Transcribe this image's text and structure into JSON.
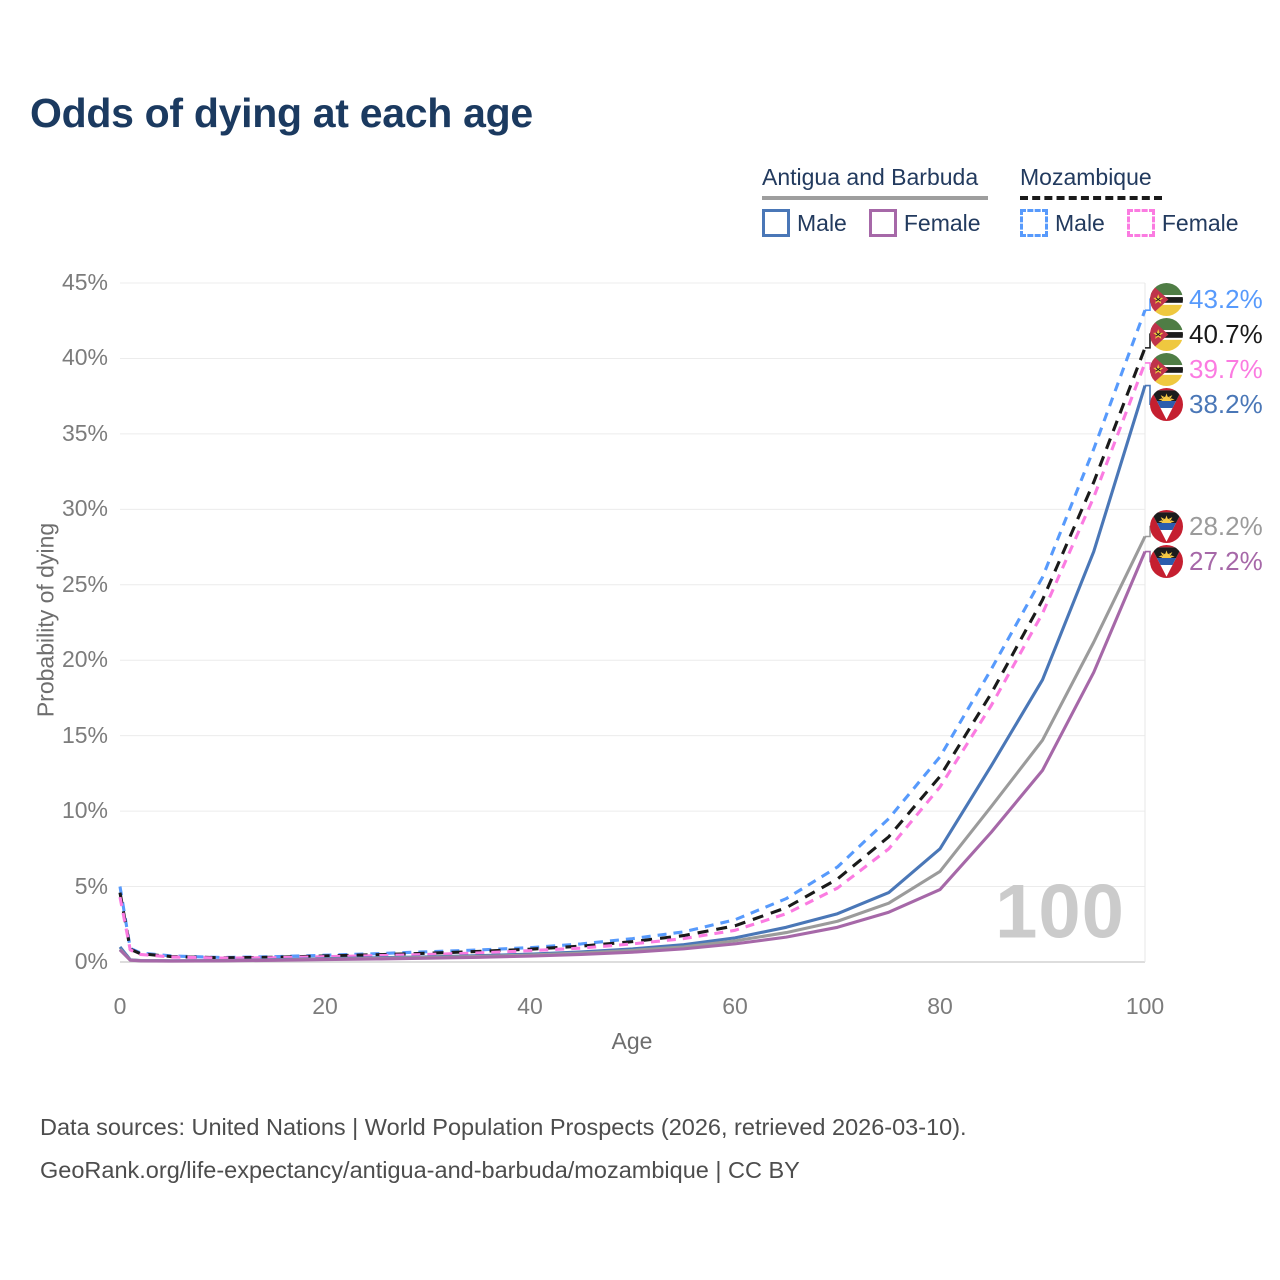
{
  "title": "Odds of dying at each age",
  "legend": {
    "groups": [
      {
        "title": "Antigua and Barbuda",
        "underline_style": "solid",
        "underline_color": "#9e9e9e",
        "items": [
          {
            "label": "Male",
            "color": "#4a77b7",
            "dash": false
          },
          {
            "label": "Female",
            "color": "#a668a8",
            "dash": false
          }
        ]
      },
      {
        "title": "Mozambique",
        "underline_style": "dashed",
        "underline_color": "#1a1a1a",
        "items": [
          {
            "label": "Male",
            "color": "#579afc",
            "dash": true
          },
          {
            "label": "Female",
            "color": "#fb7be1",
            "dash": true
          }
        ]
      }
    ]
  },
  "chart_data": {
    "type": "line",
    "title": "Odds of dying at each age",
    "xlabel": "Age",
    "ylabel": "Probability of dying",
    "xlim": [
      0,
      100
    ],
    "ylim": [
      0,
      45
    ],
    "grid": "horizontal",
    "legend_position": "top-right",
    "x_ticks": [
      {
        "v": 0,
        "label": "0"
      },
      {
        "v": 20,
        "label": "20"
      },
      {
        "v": 40,
        "label": "40"
      },
      {
        "v": 60,
        "label": "60"
      },
      {
        "v": 80,
        "label": "80"
      },
      {
        "v": 100,
        "label": "100"
      }
    ],
    "y_ticks": [
      {
        "v": 0,
        "label": "0%"
      },
      {
        "v": 5,
        "label": "5%"
      },
      {
        "v": 10,
        "label": "10%"
      },
      {
        "v": 15,
        "label": "15%"
      },
      {
        "v": 20,
        "label": "20%"
      },
      {
        "v": 25,
        "label": "25%"
      },
      {
        "v": 30,
        "label": "30%"
      },
      {
        "v": 35,
        "label": "35%"
      },
      {
        "v": 40,
        "label": "40%"
      },
      {
        "v": 45,
        "label": "45%"
      }
    ],
    "x": [
      0,
      1,
      2,
      5,
      10,
      15,
      20,
      25,
      30,
      35,
      40,
      45,
      50,
      55,
      60,
      65,
      70,
      75,
      80,
      85,
      90,
      95,
      100
    ],
    "series": [
      {
        "id": "mozambique-male",
        "name": "Mozambique Male",
        "color": "#579afc",
        "dash": true,
        "dasharray": "9 7",
        "flag": "moz",
        "end_value": 43.2,
        "end_label": "43.2%",
        "values": [
          5.0,
          0.9,
          0.6,
          0.4,
          0.3,
          0.35,
          0.45,
          0.55,
          0.68,
          0.8,
          0.95,
          1.2,
          1.55,
          2.0,
          2.8,
          4.2,
          6.3,
          9.5,
          13.6,
          19.4,
          25.5,
          34.0,
          43.2
        ]
      },
      {
        "id": "mozambique-total",
        "name": "Mozambique",
        "color": "#1a1a1a",
        "dash": true,
        "dasharray": "11 8",
        "flag": "moz",
        "end_value": 40.7,
        "end_label": "40.7%",
        "values": [
          4.6,
          0.85,
          0.55,
          0.36,
          0.28,
          0.31,
          0.4,
          0.48,
          0.58,
          0.7,
          0.85,
          1.05,
          1.35,
          1.75,
          2.4,
          3.6,
          5.5,
          8.3,
          12.3,
          17.8,
          24.0,
          31.8,
          40.7
        ]
      },
      {
        "id": "mozambique-female",
        "name": "Mozambique Female",
        "color": "#fb7be1",
        "dash": true,
        "dasharray": "9 7",
        "flag": "moz",
        "end_value": 39.7,
        "end_label": "39.7%",
        "values": [
          4.3,
          0.8,
          0.5,
          0.33,
          0.26,
          0.28,
          0.35,
          0.42,
          0.5,
          0.6,
          0.75,
          0.92,
          1.2,
          1.55,
          2.1,
          3.2,
          4.9,
          7.5,
          11.6,
          17.0,
          23.1,
          30.8,
          39.7
        ]
      },
      {
        "id": "antigua-male",
        "name": "Antigua and Barbuda Male",
        "color": "#4a77b7",
        "dash": false,
        "flag": "ant",
        "end_value": 38.2,
        "end_label": "38.2%",
        "values": [
          1.0,
          0.15,
          0.1,
          0.08,
          0.1,
          0.15,
          0.22,
          0.28,
          0.34,
          0.42,
          0.52,
          0.67,
          0.87,
          1.15,
          1.6,
          2.3,
          3.2,
          4.6,
          7.5,
          13.0,
          18.7,
          27.2,
          38.2
        ]
      },
      {
        "id": "antigua-total",
        "name": "Antigua and Barbuda",
        "color": "#9b9b9b",
        "dash": false,
        "flag": "ant",
        "end_value": 28.2,
        "end_label": "28.2%",
        "values": [
          0.85,
          0.13,
          0.09,
          0.07,
          0.09,
          0.13,
          0.19,
          0.24,
          0.3,
          0.37,
          0.46,
          0.59,
          0.77,
          1.0,
          1.4,
          1.95,
          2.7,
          3.9,
          6.0,
          10.3,
          14.7,
          21.2,
          28.2
        ]
      },
      {
        "id": "antigua-female",
        "name": "Antigua and Barbuda Female",
        "color": "#a668a8",
        "dash": false,
        "flag": "ant",
        "end_value": 27.2,
        "end_label": "27.2%",
        "values": [
          0.8,
          0.12,
          0.08,
          0.06,
          0.08,
          0.11,
          0.16,
          0.2,
          0.25,
          0.31,
          0.39,
          0.5,
          0.65,
          0.87,
          1.2,
          1.65,
          2.3,
          3.3,
          4.8,
          8.6,
          12.7,
          19.2,
          27.2
        ]
      }
    ],
    "watermark": "100"
  },
  "footer": {
    "line1": "Data sources: United Nations | World Population Prospects (2026, retrieved 2026-03-10).",
    "line2": "GeoRank.org/life-expectancy/antigua-and-barbuda/mozambique | CC BY"
  }
}
